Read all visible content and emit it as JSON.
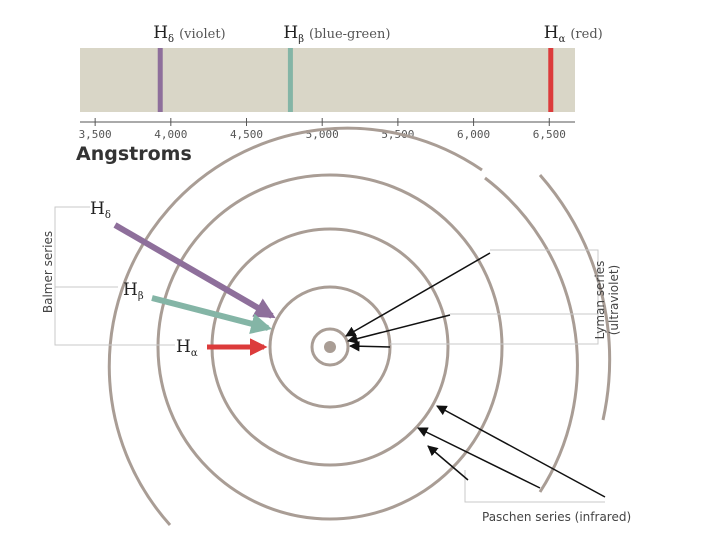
{
  "spectrum": {
    "lines": [
      {
        "symbol": "H",
        "subscript": "δ",
        "description": "(violet)",
        "wavelength": 3930,
        "color": "#8e6f9b"
      },
      {
        "symbol": "H",
        "subscript": "β",
        "description": "(blue-green)",
        "wavelength": 4790,
        "color": "#84b5a6"
      },
      {
        "symbol": "H",
        "subscript": "α",
        "description": "(red)",
        "wavelength": 6510,
        "color": "#dc3b3b"
      }
    ],
    "xlim": [
      3400,
      6670
    ],
    "xticks": [
      {
        "value": 3500,
        "label": "3,500"
      },
      {
        "value": 4000,
        "label": "4,000"
      },
      {
        "value": 4500,
        "label": "4,500"
      },
      {
        "value": 5000,
        "label": "5,000"
      },
      {
        "value": 5500,
        "label": "5,500"
      },
      {
        "value": 6000,
        "label": "6,000"
      },
      {
        "value": 6500,
        "label": "6,500"
      }
    ],
    "axis_label": "Angstroms"
  },
  "diagram": {
    "balmer": {
      "label": "Balmer series",
      "arrows": [
        {
          "symbol": "H",
          "subscript": "δ"
        },
        {
          "symbol": "H",
          "subscript": "β"
        },
        {
          "symbol": "H",
          "subscript": "α"
        }
      ]
    },
    "lyman": {
      "label": "Lyman series",
      "sublabel": "(ultraviolet)"
    },
    "paschen": {
      "label": "Paschen series (infrared)"
    }
  }
}
